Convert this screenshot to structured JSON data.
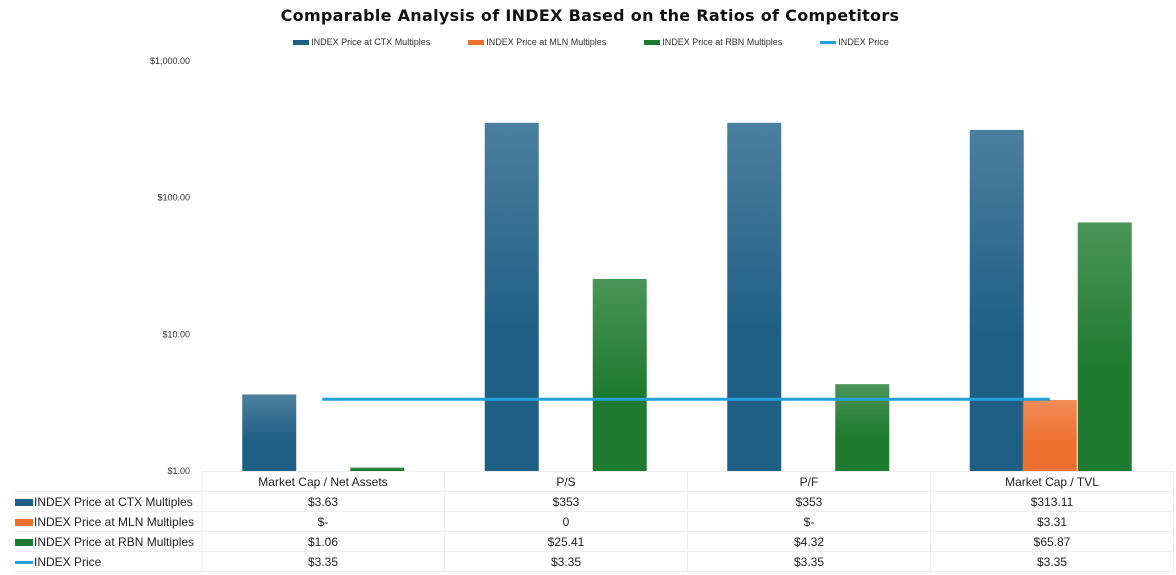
{
  "chart_data": {
    "type": "bar",
    "title": "Comparable Analysis of INDEX Based on the Ratios of Competitors",
    "yscale": "log",
    "ylim": [
      1,
      1000
    ],
    "yticks": [
      "$1.00",
      "$10.00",
      "$100.00",
      "$1,000.00"
    ],
    "ytick_values": [
      1,
      10,
      100,
      1000
    ],
    "categories": [
      "Market Cap / Net Assets",
      "P/S",
      "P/F",
      "Market Cap / TVL"
    ],
    "legend_position": "top",
    "series": [
      {
        "name": "INDEX Price at CTX Multiples",
        "type": "bar",
        "color": "#1f5f86",
        "values": [
          3.63,
          353,
          353,
          313.11
        ],
        "labels": [
          "$3.63",
          "$353",
          "$353",
          "$313.11"
        ]
      },
      {
        "name": "INDEX Price at MLN Multiples",
        "type": "bar",
        "color": "#ee7030",
        "values": [
          0,
          0,
          0,
          3.31
        ],
        "labels": [
          "$-",
          "0",
          "$-",
          "$3.31"
        ]
      },
      {
        "name": "INDEX Price at RBN Multiples",
        "type": "bar",
        "color": "#1e7a2e",
        "values": [
          1.06,
          25.41,
          4.32,
          65.87
        ],
        "labels": [
          "$1.06",
          "$25.41",
          "$4.32",
          "$65.87"
        ]
      },
      {
        "name": "INDEX Price",
        "type": "line",
        "color": "#26a0d8",
        "values": [
          3.35,
          3.35,
          3.35,
          3.35
        ],
        "labels": [
          "$3.35",
          "$3.35",
          "$3.35",
          "$3.35"
        ]
      }
    ]
  }
}
